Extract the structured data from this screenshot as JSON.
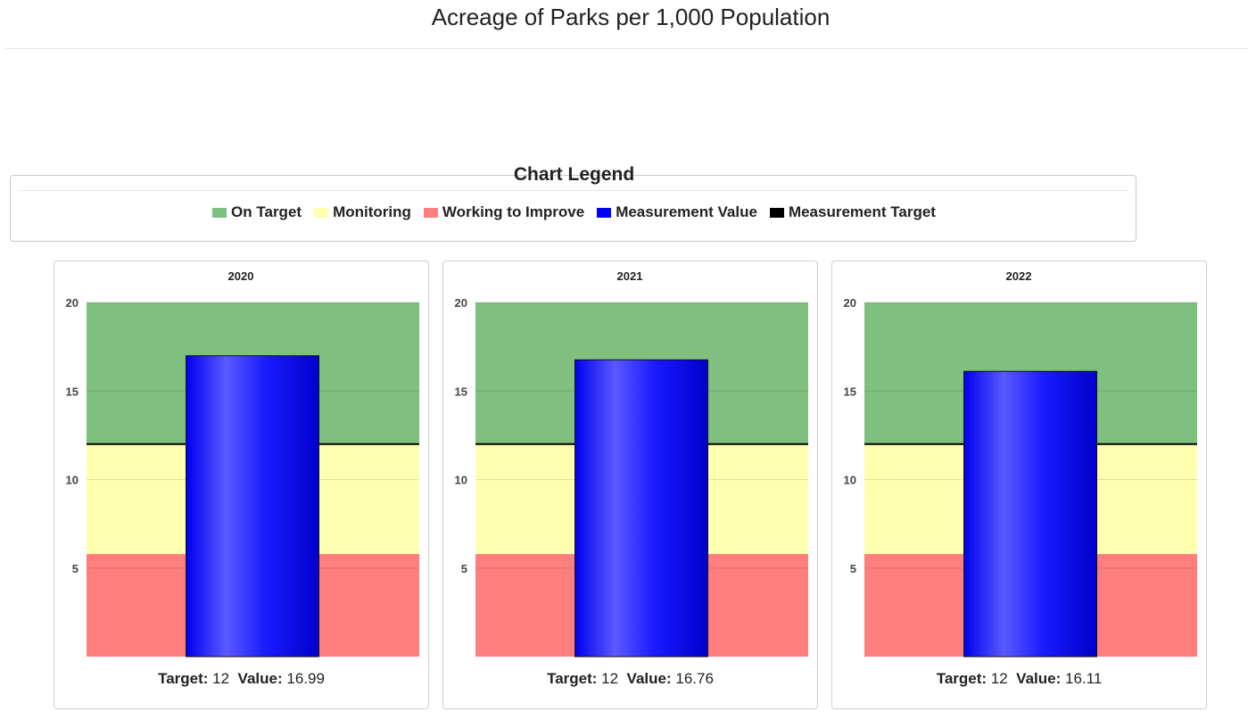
{
  "page": {
    "title": "Acreage of Parks per 1,000 Population"
  },
  "legend": {
    "title": "Chart Legend",
    "items": [
      {
        "label": "On Target",
        "color": "#7fbf7f"
      },
      {
        "label": "Monitoring",
        "color": "#ffffb0"
      },
      {
        "label": "Working to Improve",
        "color": "#ff7f7f"
      },
      {
        "label": "Measurement Value",
        "color": "#0000ff"
      },
      {
        "label": "Measurement Target",
        "color": "#000000"
      }
    ]
  },
  "footer_labels": {
    "target": "Target:",
    "value": "Value:"
  },
  "chart_data": [
    {
      "type": "bar",
      "title": "2020",
      "ylim": [
        0,
        20
      ],
      "yticks": [
        5,
        10,
        15,
        20
      ],
      "bands": {
        "working_to_improve": [
          0,
          5.8
        ],
        "monitoring": [
          5.8,
          12
        ],
        "on_target": [
          12,
          20
        ]
      },
      "target": 12,
      "value": 16.99
    },
    {
      "type": "bar",
      "title": "2021",
      "ylim": [
        0,
        20
      ],
      "yticks": [
        5,
        10,
        15,
        20
      ],
      "bands": {
        "working_to_improve": [
          0,
          5.8
        ],
        "monitoring": [
          5.8,
          12
        ],
        "on_target": [
          12,
          20
        ]
      },
      "target": 12,
      "value": 16.76
    },
    {
      "type": "bar",
      "title": "2022",
      "ylim": [
        0,
        20
      ],
      "yticks": [
        5,
        10,
        15,
        20
      ],
      "bands": {
        "working_to_improve": [
          0,
          5.8
        ],
        "monitoring": [
          5.8,
          12
        ],
        "on_target": [
          12,
          20
        ]
      },
      "target": 12,
      "value": 16.11
    }
  ]
}
